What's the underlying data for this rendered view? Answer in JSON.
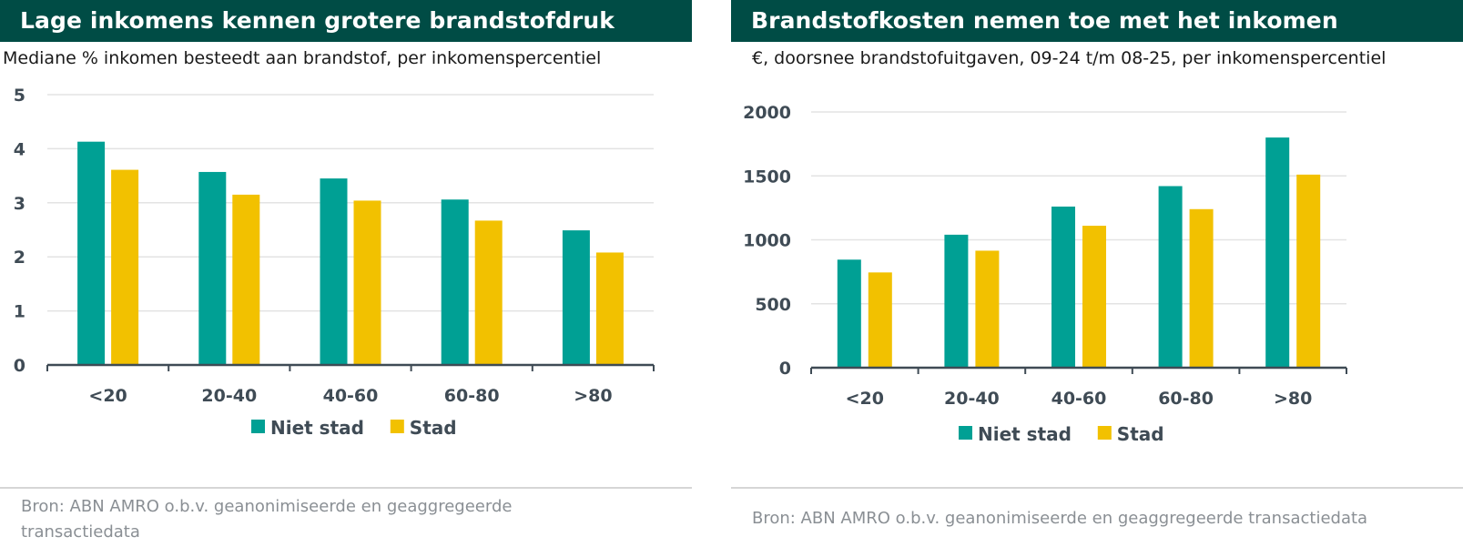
{
  "colors": {
    "title_bg": "#004c45",
    "niet_stad": "#00a094",
    "stad": "#f2c100",
    "grid": "#e3e3e3",
    "axis": "#3f4b55"
  },
  "panels": [
    {
      "title": "Lage inkomens kennen grotere brandstofdruk",
      "subtitle": "Mediane % inkomen besteedt aan brandstof, per inkomenspercentiel",
      "source": "Bron: ABN AMRO o.b.v. geanonimiseerde en geaggregeerde transactiedata"
    },
    {
      "title": "Brandstofkosten nemen toe met het inkomen",
      "subtitle": "€, doorsnee brandstofuitgaven, 09-24 t/m 08-25, per inkomenspercentiel",
      "source": "Bron: ABN AMRO o.b.v. geanonimiseerde en geaggregeerde transactiedata"
    }
  ],
  "chart_data": [
    {
      "type": "bar",
      "title": "Lage inkomens kennen grotere brandstofdruk",
      "subtitle": "Mediane % inkomen besteedt aan brandstof, per inkomenspercentiel",
      "xlabel": "",
      "ylabel": "",
      "categories": [
        "<20",
        "20-40",
        "40-60",
        "60-80",
        ">80"
      ],
      "series": [
        {
          "name": "Niet stad",
          "values": [
            4.13,
            3.57,
            3.45,
            3.06,
            2.49
          ]
        },
        {
          "name": "Stad",
          "values": [
            3.61,
            3.15,
            3.04,
            2.67,
            2.08
          ]
        }
      ],
      "ylim": [
        0,
        5
      ],
      "yticks": [
        0,
        1,
        2,
        3,
        4,
        5
      ],
      "grid": true,
      "legend": "bottom-center"
    },
    {
      "type": "bar",
      "title": "Brandstofkosten nemen toe met het inkomen",
      "subtitle": "€, doorsnee brandstofuitgaven, 09-24 t/m 08-25, per inkomenspercentiel",
      "xlabel": "",
      "ylabel": "",
      "categories": [
        "<20",
        "20-40",
        "40-60",
        "60-80",
        ">80"
      ],
      "series": [
        {
          "name": "Niet stad",
          "values": [
            845,
            1040,
            1260,
            1420,
            1800
          ]
        },
        {
          "name": "Stad",
          "values": [
            745,
            915,
            1110,
            1240,
            1510
          ]
        }
      ],
      "ylim": [
        0,
        2000
      ],
      "yticks": [
        0,
        500,
        1000,
        1500,
        2000
      ],
      "grid": true,
      "legend": "bottom-center"
    }
  ]
}
